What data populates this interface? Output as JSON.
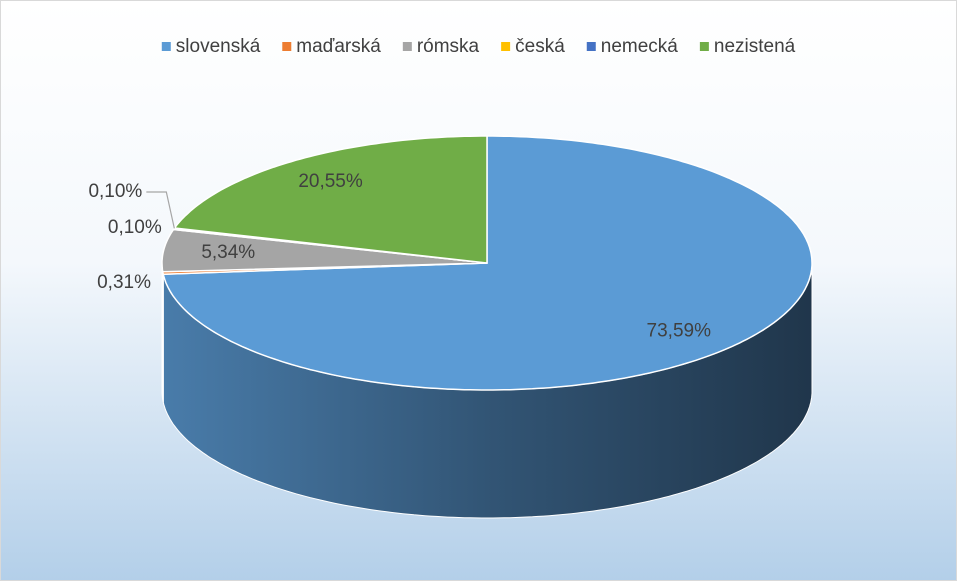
{
  "chart_data": {
    "type": "pie",
    "three_d": true,
    "categories": [
      "slovenská",
      "maďarská",
      "rómska",
      "česká",
      "nemecká",
      "nezistená"
    ],
    "values": [
      73.59,
      0.31,
      5.34,
      0.1,
      0.1,
      20.55
    ],
    "value_labels": [
      "73,59%",
      "0,31%",
      "5,34%",
      "0,10%",
      "0,10%",
      "20,55%"
    ],
    "colors": [
      "#5b9bd5",
      "#ed7d31",
      "#a5a5a5",
      "#ffc000",
      "#4472c4",
      "#70ad47"
    ],
    "legend": "top"
  }
}
